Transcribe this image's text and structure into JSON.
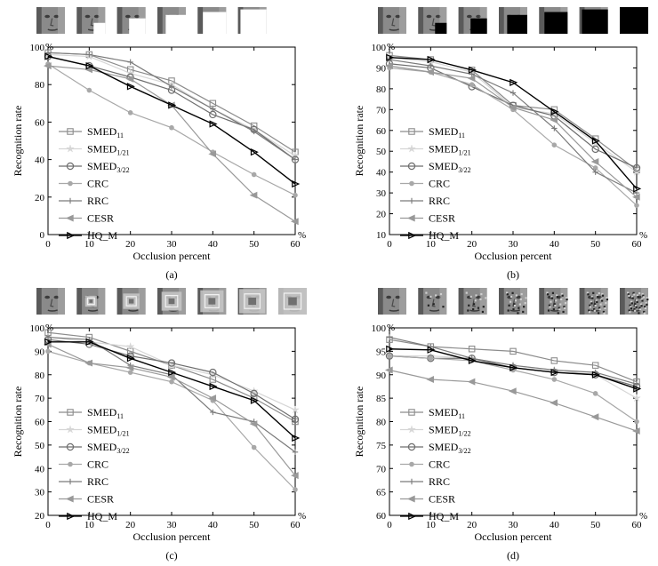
{
  "chart_data": [
    {
      "type": "line",
      "panel_label": "(a)",
      "xlabel": "Occlusion percent",
      "ylabel": "Recognition rate",
      "x_unit": "%",
      "y_unit": "%",
      "x": [
        0,
        10,
        20,
        30,
        40,
        50,
        60
      ],
      "xlim": [
        0,
        60
      ],
      "ylim": [
        0,
        100
      ],
      "yticks": [
        0,
        20,
        40,
        60,
        80,
        100
      ],
      "grid": false,
      "legend_position": "left",
      "occlusion": "white-block",
      "series": [
        {
          "name": "SMED",
          "sub": "11",
          "values": [
            97,
            96,
            88,
            82,
            70,
            58,
            44
          ]
        },
        {
          "name": "SMED",
          "sub": "1/21",
          "values": [
            96,
            95,
            86,
            80,
            67,
            56,
            42
          ]
        },
        {
          "name": "SMED",
          "sub": "3/22",
          "values": [
            95,
            90,
            84,
            77,
            64,
            56,
            40
          ]
        },
        {
          "name": "CRC",
          "sub": "",
          "values": [
            91,
            77,
            65,
            57,
            44,
            32,
            21
          ]
        },
        {
          "name": "RRC",
          "sub": "",
          "values": [
            97,
            96,
            92,
            79,
            67,
            55,
            40
          ]
        },
        {
          "name": "CESR",
          "sub": "",
          "values": [
            90,
            88,
            83,
            69,
            43,
            21,
            7
          ]
        },
        {
          "name": "HQ_M",
          "sub": "",
          "values": [
            95,
            90,
            79,
            69,
            59,
            44,
            27
          ]
        }
      ]
    },
    {
      "type": "line",
      "panel_label": "(b)",
      "xlabel": "Occlusion percent",
      "ylabel": "Recognition rate",
      "x_unit": "%",
      "y_unit": "%",
      "x": [
        0,
        10,
        20,
        30,
        40,
        50,
        60
      ],
      "xlim": [
        0,
        60
      ],
      "ylim": [
        10,
        100
      ],
      "yticks": [
        10,
        20,
        30,
        40,
        50,
        60,
        70,
        80,
        90,
        100
      ],
      "grid": false,
      "legend_position": "left",
      "occlusion": "black-block",
      "series": [
        {
          "name": "SMED",
          "sub": "11",
          "values": [
            96,
            94,
            89,
            72,
            70,
            56,
            41
          ]
        },
        {
          "name": "SMED",
          "sub": "1/21",
          "values": [
            95,
            93,
            88,
            71,
            68,
            54,
            40
          ]
        },
        {
          "name": "SMED",
          "sub": "3/22",
          "values": [
            92,
            90,
            81,
            72,
            67,
            51,
            42
          ]
        },
        {
          "name": "CRC",
          "sub": "",
          "values": [
            90,
            88,
            82,
            70,
            53,
            42,
            24
          ]
        },
        {
          "name": "RRC",
          "sub": "",
          "values": [
            94,
            91,
            87,
            78,
            61,
            40,
            30
          ]
        },
        {
          "name": "CESR",
          "sub": "",
          "values": [
            91,
            88,
            85,
            71,
            65,
            45,
            28
          ]
        },
        {
          "name": "HQ_M",
          "sub": "",
          "values": [
            95,
            94,
            89,
            83,
            69,
            55,
            32
          ]
        }
      ]
    },
    {
      "type": "line",
      "panel_label": "(c)",
      "xlabel": "Occlusion percent",
      "ylabel": "Recognition rate",
      "x_unit": "%",
      "y_unit": "%",
      "x": [
        0,
        10,
        20,
        30,
        40,
        50,
        60
      ],
      "xlim": [
        0,
        60
      ],
      "ylim": [
        20,
        100
      ],
      "yticks": [
        20,
        30,
        40,
        50,
        60,
        70,
        80,
        90,
        100
      ],
      "grid": false,
      "legend_position": "left",
      "occlusion": "texture-block",
      "series": [
        {
          "name": "SMED",
          "sub": "11",
          "values": [
            98,
            96,
            90,
            84,
            78,
            70,
            60
          ]
        },
        {
          "name": "SMED",
          "sub": "1/21",
          "values": [
            96,
            94,
            92,
            84,
            80,
            73,
            65
          ]
        },
        {
          "name": "SMED",
          "sub": "3/22",
          "values": [
            95,
            93,
            88,
            85,
            81,
            72,
            61
          ]
        },
        {
          "name": "CRC",
          "sub": "",
          "values": [
            90,
            85,
            81,
            77,
            69,
            49,
            31
          ]
        },
        {
          "name": "RRC",
          "sub": "",
          "values": [
            96,
            95,
            84,
            80,
            64,
            60,
            47
          ]
        },
        {
          "name": "CESR",
          "sub": "",
          "values": [
            93,
            85,
            83,
            79,
            70,
            59,
            37
          ]
        },
        {
          "name": "HQ_M",
          "sub": "",
          "values": [
            94,
            94,
            87,
            81,
            75,
            69,
            53
          ]
        }
      ]
    },
    {
      "type": "line",
      "panel_label": "(d)",
      "xlabel": "Occlusion percent",
      "ylabel": "Recognition rate",
      "x_unit": "%",
      "y_unit": "%",
      "x": [
        0,
        10,
        20,
        30,
        40,
        50,
        60
      ],
      "xlim": [
        0,
        60
      ],
      "ylim": [
        60,
        100
      ],
      "yticks": [
        60,
        65,
        70,
        75,
        80,
        85,
        90,
        95,
        100
      ],
      "grid": false,
      "legend_position": "left",
      "occlusion": "irregular-noise",
      "series": [
        {
          "name": "SMED",
          "sub": "11",
          "values": [
            97.5,
            96,
            95.5,
            95,
            93,
            92,
            88.5
          ]
        },
        {
          "name": "SMED",
          "sub": "1/22",
          "values": [
            94,
            94,
            93.5,
            92,
            91,
            90,
            85
          ]
        },
        {
          "name": "SMED",
          "sub": "3/22",
          "values": [
            94,
            93.5,
            93.5,
            91.5,
            90.5,
            90,
            87.5
          ]
        },
        {
          "name": "CRC",
          "sub": "",
          "values": [
            94,
            93.5,
            93,
            91,
            89,
            86,
            80
          ]
        },
        {
          "name": "RRC",
          "sub": "",
          "values": [
            98,
            96,
            93.5,
            92,
            91,
            90.5,
            88
          ]
        },
        {
          "name": "CESR",
          "sub": "",
          "values": [
            91,
            89,
            88.5,
            86.5,
            84,
            81,
            78
          ]
        },
        {
          "name": "HQ_M",
          "sub": "",
          "values": [
            95.5,
            95.3,
            93,
            91.5,
            90.5,
            90,
            87
          ]
        }
      ]
    }
  ],
  "style": {
    "series_colors": [
      "#8c8c8c",
      "#d6d6d6",
      "#6e6e6e",
      "#a8a8a8",
      "#7a7a7a",
      "#999999",
      "#000000"
    ],
    "series_markers": [
      "square",
      "star",
      "circle",
      "dot",
      "plus",
      "triangle-left",
      "triangle-right"
    ],
    "face_skin": "#8a8a8a",
    "face_dark": "#3c3c3c"
  }
}
